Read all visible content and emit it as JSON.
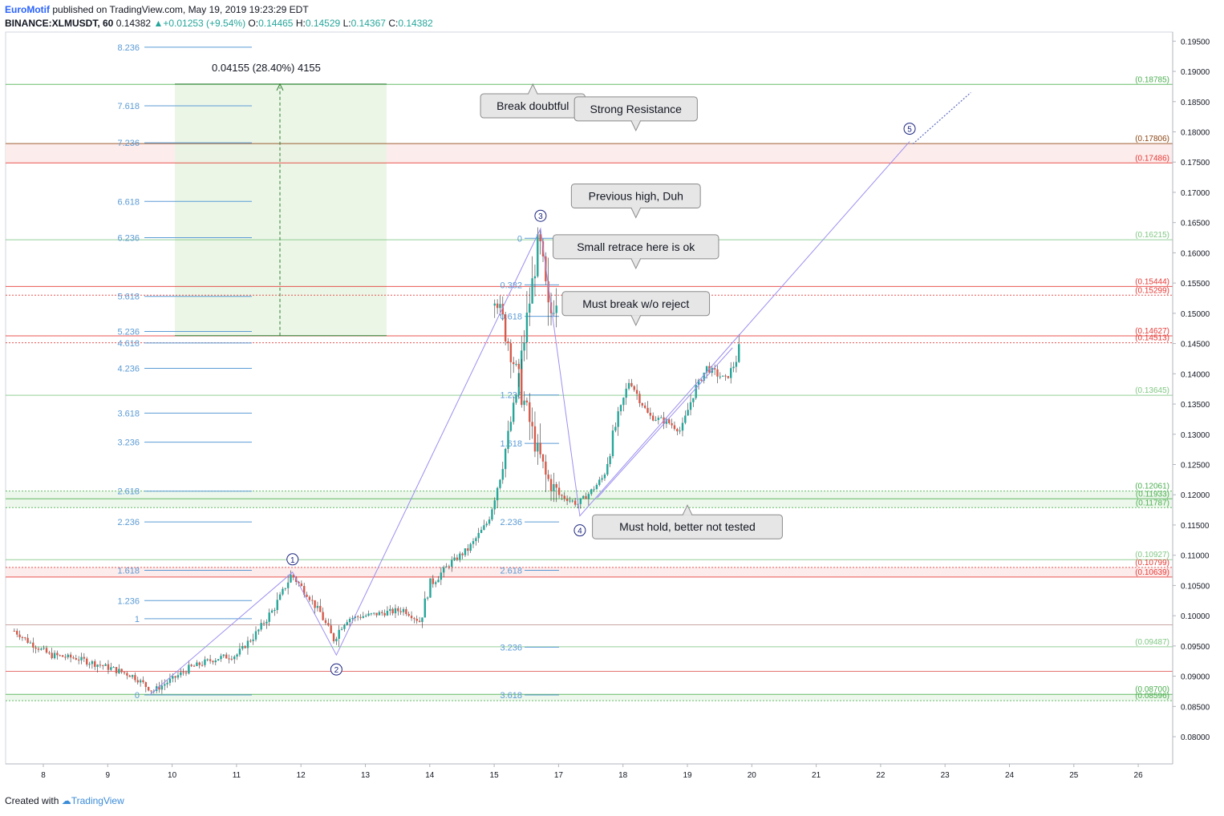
{
  "header": {
    "author": "EuroMotif",
    "published_text": "published on TradingView.com, May 19, 2019 19:23:29 EDT",
    "symbol": "BINANCE:XLMUSDT, 60",
    "last": "0.14382",
    "change": "+0.01253 (+9.54%)",
    "o_label": "O:",
    "o": "0.14465",
    "h_label": "H:",
    "h": "0.14529",
    "l_label": "L:",
    "l": "0.14367",
    "c_label": "C:",
    "c": "0.14382"
  },
  "footer": {
    "created_with": "Created with",
    "brand": "TradingView"
  },
  "colors": {
    "up": "#26a69a",
    "down": "#d65a4a",
    "fib": "#5b9bd5",
    "green": "#4caf50",
    "red": "#e57373",
    "wave": "#1a237e",
    "trend": "#9c8ff0"
  },
  "chart_data": {
    "type": "candlestick",
    "title": "",
    "ylim": [
      0.0755,
      0.1965
    ],
    "y_ticks": [
      "0.19500",
      "0.19000",
      "0.18500",
      "0.18000",
      "0.17500",
      "0.17000",
      "0.16500",
      "0.16000",
      "0.15500",
      "0.15000",
      "0.14500",
      "0.14000",
      "0.13500",
      "0.13000",
      "0.12500",
      "0.12000",
      "0.11500",
      "0.11000",
      "0.10500",
      "0.10000",
      "0.09500",
      "0.09000",
      "0.08500",
      "0.08000"
    ],
    "x_ticks": [
      "8",
      "9",
      "10",
      "11",
      "12",
      "13",
      "14",
      "15",
      "17",
      "18",
      "19",
      "20",
      "21",
      "22",
      "23",
      "24",
      "25",
      "26"
    ],
    "x_tick_days": [
      8,
      9,
      10,
      11,
      12,
      13,
      14,
      15,
      17,
      18,
      19,
      20,
      21,
      22,
      23,
      24,
      25,
      26
    ],
    "price_path": [
      [
        7.55,
        0.0975
      ],
      [
        7.8,
        0.0955
      ],
      [
        8.1,
        0.0935
      ],
      [
        8.5,
        0.093
      ],
      [
        9.0,
        0.0915
      ],
      [
        9.4,
        0.09
      ],
      [
        9.7,
        0.0875
      ],
      [
        10.0,
        0.0895
      ],
      [
        10.3,
        0.0915
      ],
      [
        10.7,
        0.093
      ],
      [
        11.0,
        0.0935
      ],
      [
        11.3,
        0.097
      ],
      [
        11.6,
        0.1015
      ],
      [
        11.85,
        0.1068
      ],
      [
        12.1,
        0.1035
      ],
      [
        12.3,
        0.1005
      ],
      [
        12.5,
        0.096
      ],
      [
        12.7,
        0.0995
      ],
      [
        13.0,
        0.1
      ],
      [
        13.3,
        0.1005
      ],
      [
        13.6,
        0.101
      ],
      [
        13.85,
        0.099
      ],
      [
        14.0,
        0.105
      ],
      [
        14.3,
        0.1085
      ],
      [
        14.6,
        0.111
      ],
      [
        14.9,
        0.1155
      ],
      [
        15.1,
        0.1235
      ],
      [
        15.35,
        0.137
      ],
      [
        15.55,
        0.152
      ],
      [
        15.7,
        0.1622
      ],
      [
        15.85,
        0.149
      ],
      [
        16.0,
        0.154
      ],
      [
        16.2,
        0.146
      ],
      [
        16.4,
        0.138
      ],
      [
        16.6,
        0.13
      ],
      [
        16.8,
        0.123
      ],
      [
        17.0,
        0.12
      ],
      [
        17.3,
        0.1185
      ],
      [
        17.5,
        0.1205
      ],
      [
        17.7,
        0.123
      ],
      [
        17.9,
        0.132
      ],
      [
        18.1,
        0.139
      ],
      [
        18.4,
        0.133
      ],
      [
        18.7,
        0.132
      ],
      [
        18.9,
        0.1305
      ],
      [
        19.1,
        0.137
      ],
      [
        19.3,
        0.141
      ],
      [
        19.6,
        0.139
      ],
      [
        19.75,
        0.142
      ],
      [
        19.8,
        0.144
      ]
    ],
    "fib_extension_levels": [
      {
        "label": "8.236",
        "price": 0.194
      },
      {
        "label": "7.618",
        "price": 0.1843
      },
      {
        "label": "7.236",
        "price": 0.1782
      },
      {
        "label": "6.618",
        "price": 0.1685
      },
      {
        "label": "6.236",
        "price": 0.1625
      },
      {
        "label": "5.618",
        "price": 0.1528
      },
      {
        "label": "5.236",
        "price": 0.147
      },
      {
        "label": "4.618",
        "price": 0.1451
      },
      {
        "label": "4.236",
        "price": 0.1409
      },
      {
        "label": "3.618",
        "price": 0.1335
      },
      {
        "label": "3.236",
        "price": 0.1287
      },
      {
        "label": "2.618",
        "price": 0.1206
      },
      {
        "label": "2.236",
        "price": 0.1155
      },
      {
        "label": "1.618",
        "price": 0.1075
      },
      {
        "label": "1.236",
        "price": 0.1025
      },
      {
        "label": "1",
        "price": 0.0995
      },
      {
        "label": "0",
        "price": 0.0869
      }
    ],
    "fib_retracement_levels": [
      {
        "label": "0",
        "price": 0.1624
      },
      {
        "label": "0.382",
        "price": 0.1547
      },
      {
        "label": "0.618",
        "price": 0.1495
      },
      {
        "label": "1.236",
        "price": 0.1365
      },
      {
        "label": "1.618",
        "price": 0.1285
      },
      {
        "label": "2.236",
        "price": 0.1155
      },
      {
        "label": "2.618",
        "price": 0.1075
      },
      {
        "label": "3.236",
        "price": 0.0948
      },
      {
        "label": "3.618",
        "price": 0.0869
      }
    ],
    "horizontal_levels": [
      {
        "label": "(0.18785)",
        "price": 0.18785,
        "color": "#4caf50"
      },
      {
        "label": "(0.17806)",
        "price": 0.17806,
        "color": "#8b4513"
      },
      {
        "label": "(0.17486)",
        "price": 0.17486,
        "color": "#e53935"
      },
      {
        "label": "(0.16215)",
        "price": 0.16215,
        "color": "#81c784"
      },
      {
        "label": "(0.15444)",
        "price": 0.15444,
        "color": "#e53935"
      },
      {
        "label": "(0.15299)",
        "price": 0.15299,
        "color": "#e53935"
      },
      {
        "label": "(0.14627)",
        "price": 0.14627,
        "color": "#e53935"
      },
      {
        "label": "(0.14513)",
        "price": 0.14513,
        "color": "#e53935"
      },
      {
        "label": "(0.13645)",
        "price": 0.13645,
        "color": "#81c784"
      },
      {
        "label": "(0.12061)",
        "price": 0.12061,
        "color": "#4caf50"
      },
      {
        "label": "(0.11933)",
        "price": 0.11933,
        "color": "#4caf50"
      },
      {
        "label": "(0.11787)",
        "price": 0.11787,
        "color": "#4caf50"
      },
      {
        "label": "(0.10927)",
        "price": 0.10927,
        "color": "#81c784"
      },
      {
        "label": "(0.10799)",
        "price": 0.10799,
        "color": "#e53935"
      },
      {
        "label": "(0.10639)",
        "price": 0.10639,
        "color": "#e53935"
      },
      {
        "label": "(0.09487)",
        "price": 0.09487,
        "color": "#81c784"
      },
      {
        "label": "(0.08700)",
        "price": 0.087,
        "color": "#4caf50"
      },
      {
        "label": "(0.08596)",
        "price": 0.08596,
        "color": "#4caf50"
      }
    ],
    "waves": [
      {
        "label": "1",
        "x": 11.87,
        "price": 0.1072
      },
      {
        "label": "2",
        "x": 12.55,
        "price": 0.0935
      },
      {
        "label": "3",
        "x": 15.72,
        "price": 0.164
      },
      {
        "label": "4",
        "x": 17.33,
        "price": 0.1165
      },
      {
        "label": "5",
        "x": 22.45,
        "price": 0.1784
      }
    ],
    "measure": {
      "text": "0.04155 (28.40%) 4155",
      "from_price": 0.1463,
      "to_price": 0.1879
    },
    "callouts": [
      {
        "text": "Break doubtful",
        "x": 16.6,
        "price": 0.1843
      },
      {
        "text": "Strong Resistance",
        "x": 18.2,
        "price": 0.1838
      },
      {
        "text": "Previous high, Duh",
        "x": 18.2,
        "price": 0.1694
      },
      {
        "text": "Small retrace here is ok",
        "x": 18.2,
        "price": 0.161
      },
      {
        "text": "Must break w/o reject",
        "x": 18.2,
        "price": 0.1516
      },
      {
        "text": "Must hold, better not tested",
        "x": 19.0,
        "price": 0.1147
      }
    ]
  }
}
